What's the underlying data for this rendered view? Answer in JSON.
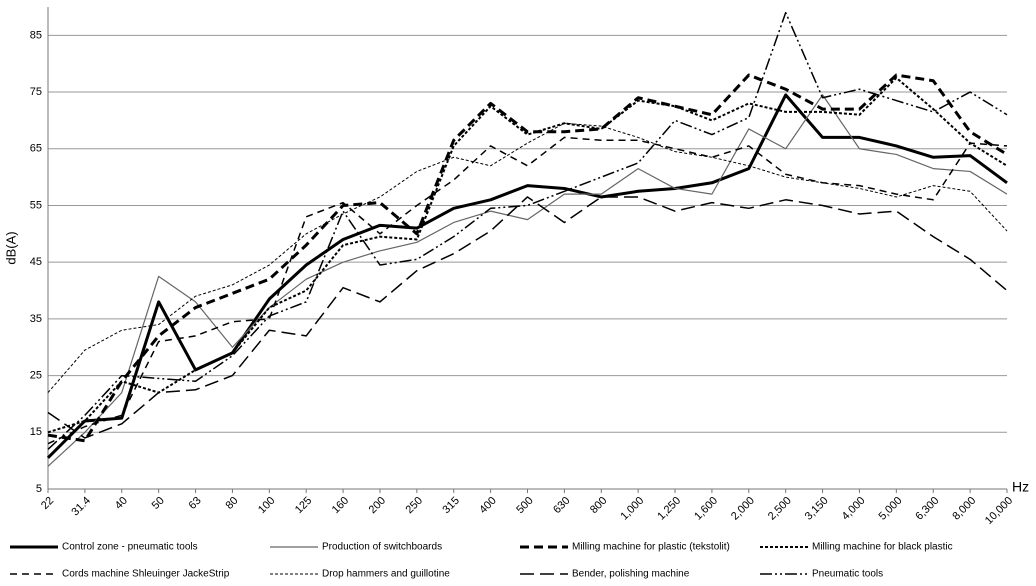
{
  "chart_data": {
    "type": "line",
    "y_label": "dB(A)",
    "x_label": "Hz",
    "categories": [
      "22",
      "31.4",
      "40",
      "50",
      "63",
      "80",
      "100",
      "125",
      "160",
      "200",
      "250",
      "315",
      "400",
      "500",
      "630",
      "800",
      "1,000",
      "1,250",
      "1,600",
      "2,000",
      "2,500",
      "3,150",
      "4,000",
      "5,000",
      "6,300",
      "8,000",
      "10,000"
    ],
    "ylim": [
      5,
      90
    ],
    "yticks": [
      5,
      15,
      25,
      35,
      45,
      55,
      65,
      75,
      85
    ],
    "grid": true,
    "series": [
      {
        "name": "Control zone - pneumatic tools",
        "color": "#000000",
        "width": 3,
        "dash": "none",
        "values": [
          10.5,
          17,
          17.5,
          38,
          26,
          29,
          38.5,
          44.5,
          49,
          51.5,
          51,
          54.5,
          56,
          58.5,
          58,
          56.5,
          57.5,
          58,
          59,
          61.5,
          74.5,
          67,
          67,
          65.5,
          63.5,
          63.8,
          59
        ]
      },
      {
        "name": "Production of switchboards",
        "color": "#666666",
        "width": 1.2,
        "dash": "none",
        "values": [
          9,
          15,
          22,
          42.5,
          38,
          30,
          37,
          42,
          45,
          47,
          48.5,
          52,
          54,
          52.5,
          57,
          57,
          61.5,
          58,
          57,
          68.5,
          65,
          74.5,
          65,
          64,
          61.5,
          61,
          57
        ]
      },
      {
        "name": "Milling machine for plastic (tekstolit)",
        "color": "#000000",
        "width": 3,
        "dash": "9 5",
        "values": [
          14.5,
          13.5,
          24,
          32,
          37,
          39.5,
          42,
          48,
          55,
          55.5,
          50,
          66.5,
          73,
          68,
          68,
          68.5,
          74,
          72.5,
          71,
          78,
          75.5,
          72,
          72,
          78,
          77,
          68,
          64
        ]
      },
      {
        "name": "Milling machine for black plastic",
        "color": "#000000",
        "width": 2,
        "dash": "3 2",
        "values": [
          15,
          17,
          24,
          22,
          26,
          29,
          37,
          40,
          48,
          49.5,
          49,
          65.5,
          72.5,
          67.5,
          69.5,
          68.5,
          73.5,
          72.5,
          70,
          73,
          71.5,
          71.5,
          71,
          77.5,
          72,
          66,
          62
        ]
      },
      {
        "name": "Cords machine Shleuinger JackeStrip",
        "color": "#000000",
        "width": 1.5,
        "dash": "7 5",
        "values": [
          13,
          16,
          18,
          31,
          32,
          34.5,
          35,
          53,
          55.5,
          50,
          55,
          59.5,
          65.5,
          62,
          67,
          66.5,
          66.5,
          65,
          63.5,
          65.5,
          60.5,
          59,
          58.5,
          57,
          56,
          66,
          65.5
        ]
      },
      {
        "name": "Drop hammers and guillotine",
        "color": "#000000",
        "width": 1,
        "dash": "3 2",
        "values": [
          22,
          29.5,
          33,
          34,
          39,
          41,
          44.5,
          50,
          53.5,
          56.5,
          61,
          63.5,
          62,
          66,
          69.5,
          69,
          67,
          64.5,
          63.5,
          62,
          60,
          59,
          58,
          56.5,
          58.5,
          57.5,
          50.5
        ]
      },
      {
        "name": "Bender, polishing machine",
        "color": "#000000",
        "width": 1.5,
        "dash": "14 6",
        "values": [
          18.5,
          14,
          16.5,
          22,
          22.5,
          25,
          33,
          32,
          40.5,
          38,
          43.5,
          46.5,
          50.5,
          56.5,
          52,
          56.5,
          56.5,
          54,
          55.5,
          54.5,
          56,
          55,
          53.5,
          54,
          49.5,
          45.5,
          40
        ]
      },
      {
        "name": "Pneumatic tools",
        "color": "#000000",
        "width": 1.5,
        "dash": "12 3 2 3 2 3",
        "values": [
          12,
          18,
          25,
          24.5,
          24,
          28.5,
          35.5,
          38,
          54,
          44.5,
          45.5,
          49.5,
          54.5,
          55,
          57.5,
          60,
          62.5,
          70,
          67.5,
          70.5,
          89,
          74,
          75.5,
          73.5,
          71.5,
          75,
          71
        ]
      }
    ]
  }
}
